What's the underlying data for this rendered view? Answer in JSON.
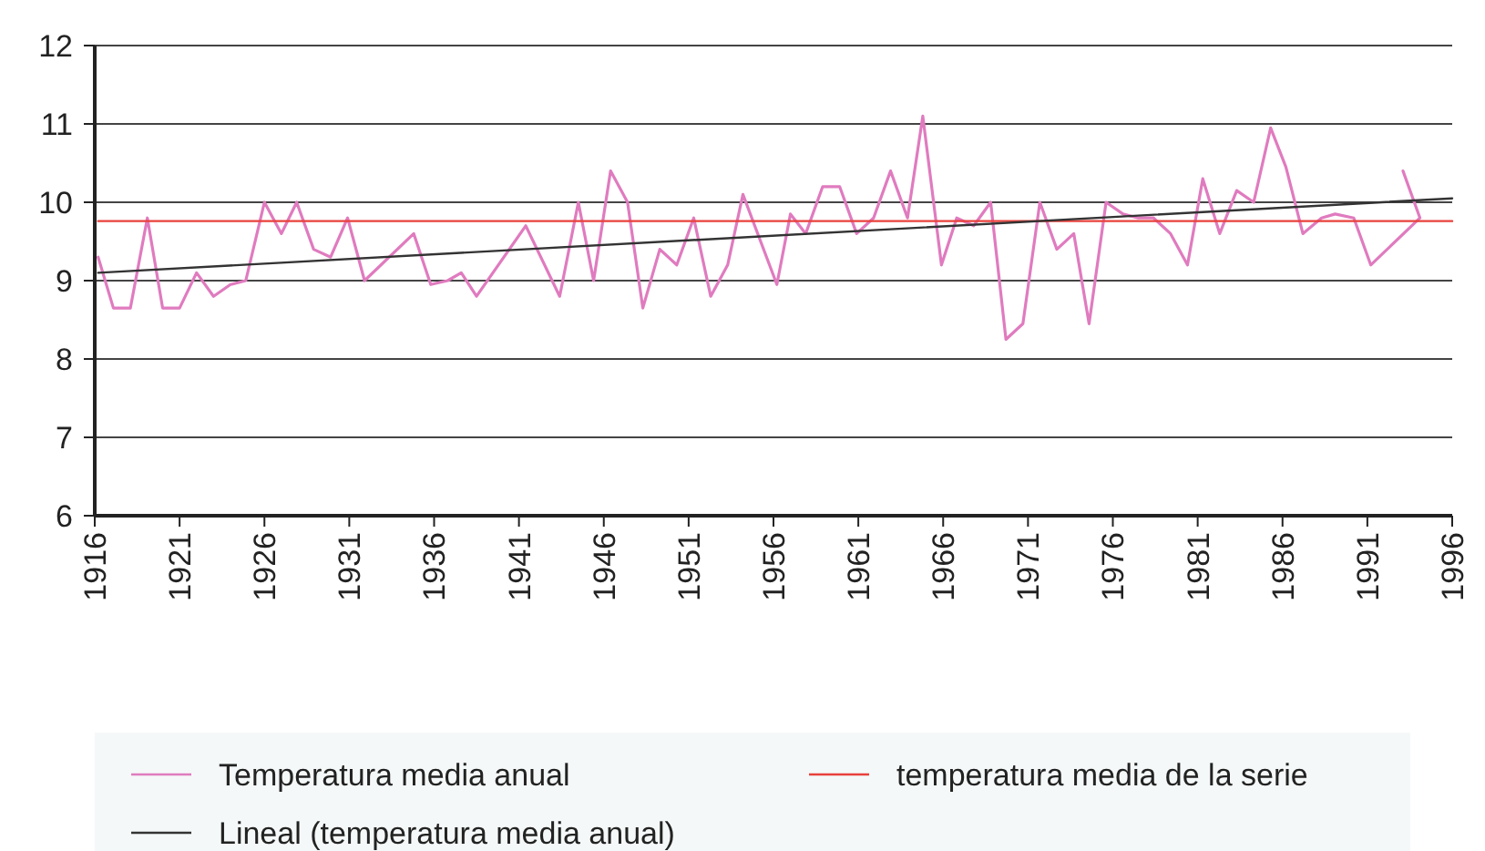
{
  "chart_data": {
    "type": "line",
    "xlim": [
      1916,
      1996
    ],
    "xticks": [
      1916,
      1921,
      1926,
      1931,
      1936,
      1941,
      1946,
      1951,
      1956,
      1961,
      1966,
      1971,
      1976,
      1981,
      1986,
      1991,
      1996
    ],
    "ylim": [
      6,
      12
    ],
    "yticks": [
      6,
      7,
      8,
      9,
      10,
      11,
      12
    ],
    "grid": "y",
    "legend": "bottom",
    "marker": "none",
    "line_style": "solid",
    "series": [
      {
        "name": "Temperatura media anual",
        "color": "#e07bbf",
        "x": [
          1916.2,
          1917.1,
          1918.1,
          1919.1,
          1920.0,
          1921.0,
          1922.0,
          1923.0,
          1924.0,
          1924.9,
          1926.0,
          1927.0,
          1927.9,
          1928.9,
          1929.9,
          1930.9,
          1931.9,
          1934.8,
          1935.8,
          1936.8,
          1937.6,
          1938.5,
          1941.4,
          1943.4,
          1944.5,
          1945.4,
          1946.4,
          1947.4,
          1948.3,
          1949.3,
          1950.3,
          1951.3,
          1952.3,
          1953.3,
          1954.2,
          1956.2,
          1957.0,
          1957.9,
          1958.9,
          1959.9,
          1960.9,
          1961.9,
          1962.9,
          1963.9,
          1964.8,
          1965.9,
          1966.8,
          1967.8,
          1968.8,
          1969.7,
          1970.7,
          1971.7,
          1972.7,
          1973.7,
          1974.6,
          1975.6,
          1976.6,
          1977.5,
          1978.4,
          1979.4,
          1980.4,
          1981.3,
          1982.3,
          1983.3,
          1984.3,
          1985.3,
          1986.2,
          1987.2,
          1988.3,
          1989.1,
          1990.2,
          1991.2,
          1994.1,
          1993.1
        ],
        "values": [
          9.3,
          8.65,
          8.65,
          9.8,
          8.65,
          8.65,
          9.1,
          8.8,
          8.95,
          9.0,
          10.0,
          9.6,
          10.0,
          9.4,
          9.3,
          9.8,
          9.0,
          9.6,
          8.95,
          9.0,
          9.1,
          8.8,
          9.7,
          8.8,
          10.0,
          9.0,
          10.4,
          10.0,
          8.65,
          9.4,
          9.2,
          9.8,
          8.8,
          9.2,
          10.1,
          8.95,
          9.85,
          9.6,
          10.2,
          10.2,
          9.6,
          9.8,
          10.4,
          9.8,
          11.1,
          9.2,
          9.8,
          9.7,
          10.0,
          8.25,
          8.45,
          10.0,
          9.4,
          9.6,
          8.45,
          10.0,
          9.85,
          9.8,
          9.8,
          9.6,
          9.2,
          10.3,
          9.6,
          10.15,
          10.0,
          10.95,
          10.45,
          9.6,
          9.8,
          9.85,
          9.8,
          9.2,
          9.8,
          10.4
        ]
      },
      {
        "name": "temperatura media de la serie",
        "color": "#e8413c",
        "x": [
          1916.2,
          1996
        ],
        "values": [
          9.76,
          9.76
        ]
      },
      {
        "name": "Lineal (temperatura media anual)",
        "color": "#333333",
        "x": [
          1916.2,
          1996
        ],
        "values": [
          9.1,
          10.05
        ]
      }
    ]
  }
}
